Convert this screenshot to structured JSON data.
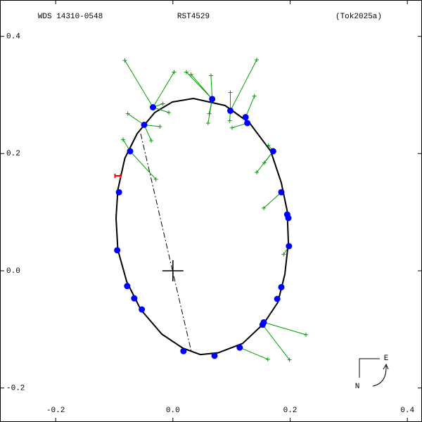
{
  "chart_data": {
    "type": "orbit",
    "title": "WDS 14310-0548",
    "subtitle": "RST4529",
    "reference": "(Tok2025a)",
    "xlim": [
      -0.295,
      0.425
    ],
    "ylim": [
      -0.258,
      0.462
    ],
    "xticks": [
      -0.2,
      {
        "value": 0,
        "label": "0.0"
      },
      0.2,
      0.4
    ],
    "yticks": [
      -0.2,
      {
        "value": 0,
        "label": "0.0"
      },
      0.2,
      0.4
    ],
    "orbit": {
      "color": "#000000",
      "x": [
        0.035,
        0.089,
        0.131,
        0.167,
        0.185,
        0.195,
        0.197,
        0.191,
        0.179,
        0.155,
        0.119,
        0.077,
        0.047,
        0.017,
        -0.019,
        -0.055,
        -0.079,
        -0.094,
        -0.097,
        -0.094,
        -0.082,
        -0.061,
        -0.031,
        -0.001,
        0.035
      ],
      "y": [
        0.294,
        0.282,
        0.252,
        0.204,
        0.15,
        0.102,
        0.048,
        -0.006,
        -0.054,
        -0.09,
        -0.124,
        -0.14,
        -0.143,
        -0.132,
        -0.108,
        -0.066,
        -0.018,
        0.036,
        0.09,
        0.138,
        0.192,
        0.234,
        0.27,
        0.288,
        0.294
      ]
    },
    "series": [
      {
        "name": "computed",
        "color": "#0000ff",
        "x": [
          -0.049,
          -0.073,
          -0.034,
          0.067,
          0.098,
          0.124,
          0.127,
          0.171,
          0.185,
          0.195,
          0.197,
          0.198,
          0.185,
          0.178,
          0.155,
          0.153,
          0.114,
          0.071,
          0.018,
          -0.053,
          -0.066,
          -0.078,
          -0.095,
          -0.092
        ],
        "values": [
          0.249,
          0.204,
          0.279,
          0.293,
          0.273,
          0.262,
          0.252,
          0.204,
          0.134,
          0.096,
          0.09,
          0.042,
          -0.028,
          -0.048,
          -0.088,
          -0.092,
          -0.131,
          -0.145,
          -0.137,
          -0.066,
          -0.047,
          -0.026,
          0.035,
          0.134
        ]
      },
      {
        "name": "measured",
        "color": "#00a000",
        "x": [
          -0.082,
          -0.077,
          -0.085,
          -0.029,
          -0.037,
          -0.022,
          -0.017,
          -0.007,
          0.002,
          0.023,
          0.031,
          0.065,
          0.062,
          0.06,
          0.098,
          0.143,
          0.139,
          0.097,
          0.101,
          0.163,
          0.156,
          0.143,
          0.155,
          0.189,
          0.227,
          0.199,
          0.162
        ],
        "values": [
          0.359,
          0.268,
          0.224,
          0.156,
          0.222,
          0.246,
          0.285,
          0.27,
          0.339,
          0.339,
          0.335,
          0.333,
          0.268,
          0.252,
          0.304,
          0.36,
          0.298,
          0.256,
          0.244,
          0.214,
          0.184,
          0.168,
          0.107,
          0.028,
          -0.109,
          -0.152,
          -0.151
        ]
      },
      {
        "name": "first",
        "color": "#ff0000",
        "x": [
          -0.094
        ],
        "values": [
          0.162
        ]
      }
    ],
    "line_of_nodes": {
      "x": [
        -0.055,
        0.031
      ],
      "y": [
        0.234,
        -0.136
      ]
    },
    "compass_labels": [
      "N",
      "E"
    ]
  }
}
